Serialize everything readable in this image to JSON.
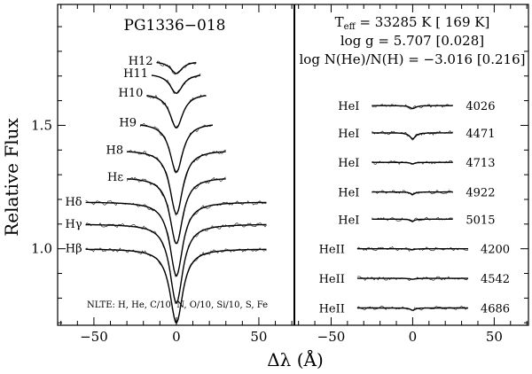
{
  "chart_data": {
    "type": "line",
    "ylabel": "Relative Flux",
    "xlabel": "Δλ (Å)",
    "ylim": [
      0.69,
      1.99
    ],
    "panels": [
      {
        "name": "balmer",
        "title": "PG1336−018",
        "xlim": [
          -72,
          71
        ],
        "xticks": [
          -50,
          0,
          50
        ],
        "yticks": [
          1.0,
          1.5
        ],
        "tick_labels": [
          "−50",
          "0",
          "50"
        ],
        "ytick_labels": [
          "1.0",
          "1.5"
        ],
        "note": "NLTE: H, He, C/10, N, O/10, Si/10, S, Fe",
        "lines": [
          {
            "label": "Hβ",
            "half_width": 55,
            "continuum": 1.0,
            "depth": 0.3,
            "width": 4.5
          },
          {
            "label": "Hγ",
            "half_width": 55,
            "continuum": 1.1,
            "depth": 0.32,
            "width": 4.5
          },
          {
            "label": "Hδ",
            "half_width": 55,
            "continuum": 1.19,
            "depth": 0.3,
            "width": 4.5
          },
          {
            "label": "Hε",
            "half_width": 30,
            "continuum": 1.29,
            "depth": 0.27,
            "width": 4.5
          },
          {
            "label": "H8",
            "half_width": 30,
            "continuum": 1.4,
            "depth": 0.26,
            "width": 4.5
          },
          {
            "label": "H9",
            "half_width": 22,
            "continuum": 1.51,
            "depth": 0.2,
            "width": 4.5
          },
          {
            "label": "H10",
            "half_width": 18,
            "continuum": 1.63,
            "depth": 0.14,
            "width": 4.5
          },
          {
            "label": "H11",
            "half_width": 15,
            "continuum": 1.71,
            "depth": 0.08,
            "width": 4.5
          },
          {
            "label": "H12",
            "half_width": 12,
            "continuum": 1.76,
            "depth": 0.05,
            "width": 4.0
          }
        ]
      },
      {
        "name": "helium",
        "xlim": [
          -72,
          71
        ],
        "xticks": [
          -50,
          0,
          50
        ],
        "tick_labels": [
          "−50",
          "0",
          "50"
        ],
        "params": {
          "teff": "T",
          "teff_sub": "eff",
          "teff_value": " = 33285 K [ 169 K]",
          "logg": "log g = 5.707 [0.028]",
          "loghe": "log N(He)/N(H) = −3.016 [0.216]"
        },
        "lines": [
          {
            "ion": "HeI",
            "wavelength": "4026",
            "continuum": 1.58,
            "depth": 0.012,
            "width": 2.0
          },
          {
            "ion": "HeI",
            "wavelength": "4471",
            "continuum": 1.47,
            "depth": 0.025,
            "width": 2.0
          },
          {
            "ion": "HeI",
            "wavelength": "4713",
            "continuum": 1.35,
            "depth": 0.006,
            "width": 1.5
          },
          {
            "ion": "HeI",
            "wavelength": "4922",
            "continuum": 1.23,
            "depth": 0.01,
            "width": 1.5
          },
          {
            "ion": "HeI",
            "wavelength": "5015",
            "continuum": 1.12,
            "depth": 0.008,
            "width": 1.5
          },
          {
            "ion": "HeII",
            "wavelength": "4200",
            "continuum": 1.0,
            "depth": 0.004,
            "width": 1.5
          },
          {
            "ion": "HeII",
            "wavelength": "4542",
            "continuum": 0.88,
            "depth": 0.004,
            "width": 1.5
          },
          {
            "ion": "HeII",
            "wavelength": "4686",
            "continuum": 0.76,
            "depth": 0.01,
            "width": 1.5
          }
        ]
      }
    ]
  }
}
